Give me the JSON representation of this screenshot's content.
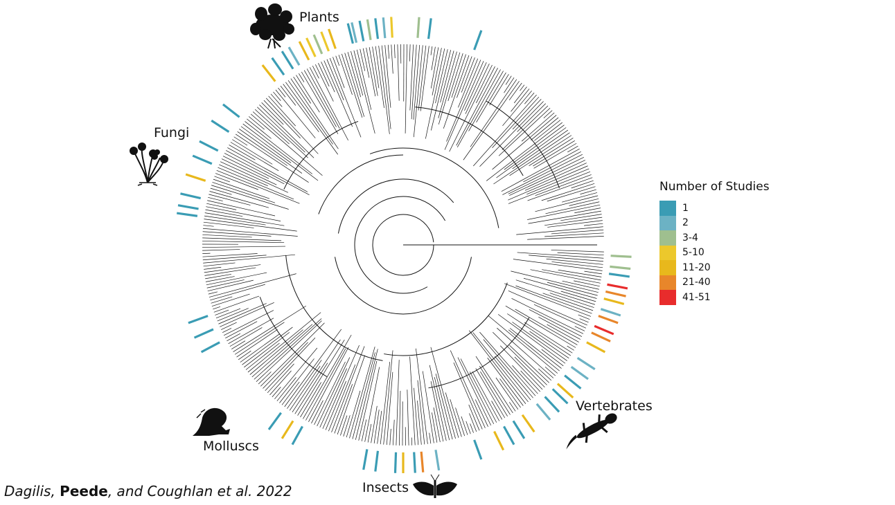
{
  "legend": {
    "title": "Number of Studies",
    "items": [
      {
        "label": "1",
        "color": "#3a9cb4"
      },
      {
        "label": "2",
        "color": "#6cb2c4"
      },
      {
        "label": "3-4",
        "color": "#9fbf8f"
      },
      {
        "label": "5-10",
        "color": "#ecc82c"
      },
      {
        "label": "11-20",
        "color": "#e8b81c"
      },
      {
        "label": "21-40",
        "color": "#e8862a"
      },
      {
        "label": "41-51",
        "color": "#e82c2c"
      }
    ]
  },
  "clades": {
    "plants": "Plants",
    "fungi": "Fungi",
    "molluscs": "Molluscs",
    "insects": "Insects",
    "vertebrates": "Vertebrates"
  },
  "icons": {
    "plants": "plant-silhouette-icon",
    "fungi": "mushroom-silhouette-icon",
    "molluscs": "snail-silhouette-icon",
    "insects": "moth-silhouette-icon",
    "vertebrates": "salamander-silhouette-icon"
  },
  "citation": {
    "author1": "Dagilis",
    "sep1": ", ",
    "author2": "Peede",
    "sep2": ", and Coughlan et al. 2022"
  }
}
